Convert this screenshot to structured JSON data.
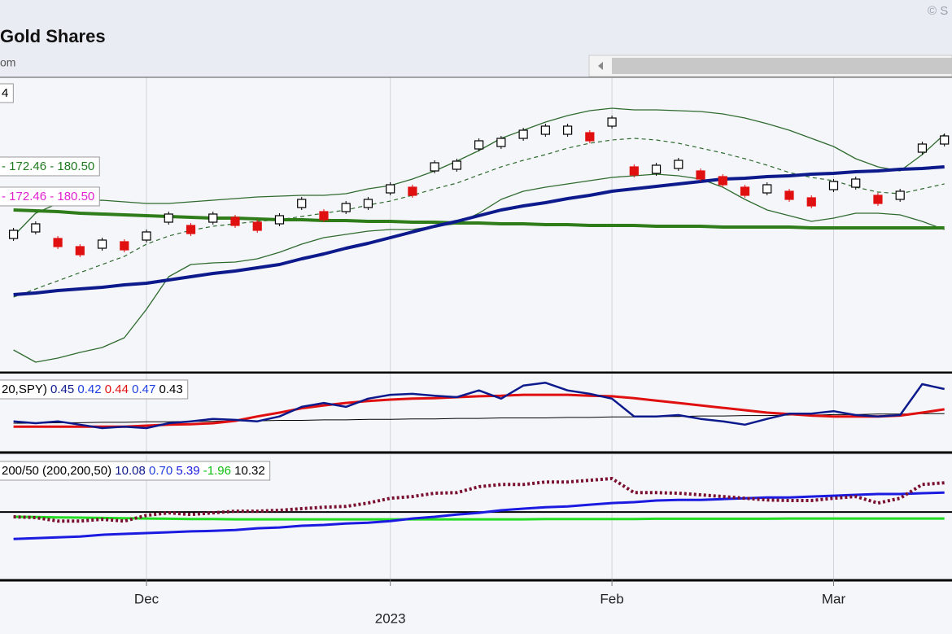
{
  "header": {
    "title": "Gold Shares",
    "subtitle": "om",
    "copyright": "© S"
  },
  "chart_data": [
    {
      "type": "line",
      "legend_texts": [
        [
          {
            "text": "4",
            "color": "#000000"
          }
        ],
        [
          {
            "text": "- 172.46 - 180.50",
            "color": "#1e7b1e"
          }
        ],
        [
          {
            "text": "- 172.46 - 180.50",
            "color": "#e020d0"
          }
        ]
      ],
      "ylim": [
        149.8,
        186
      ],
      "series": [
        {
          "color": "#2f6b2f",
          "width": 1.3,
          "style": "solid",
          "values": [
            166.5,
            169.3,
            170.5,
            170.8,
            170.9,
            170.7,
            170.5,
            170.5,
            170.7,
            170.9,
            171.1,
            171.3,
            171.4,
            171.5,
            171.5,
            171.7,
            172.3,
            172.7,
            173.5,
            174.5,
            175.7,
            177.0,
            178.5,
            179.5,
            180.5,
            181.3,
            181.9,
            182.2,
            182.0,
            182.0,
            181.9,
            181.8,
            181.5,
            181.0,
            180.3,
            179.5,
            178.5,
            177.5,
            176.0,
            175.0,
            174.5,
            176.5,
            179.0
          ]
        },
        {
          "color": "#2f6b2f",
          "width": 1.2,
          "style": "dashed",
          "values": [
            159.0,
            160.0,
            161.0,
            162.0,
            163.0,
            164.0,
            165.5,
            166.5,
            167.2,
            167.7,
            168.0,
            168.3,
            168.5,
            168.9,
            169.3,
            169.7,
            170.3,
            170.8,
            171.5,
            172.3,
            173.0,
            174.0,
            175.0,
            175.8,
            176.5,
            177.3,
            177.9,
            178.3,
            178.5,
            178.3,
            177.9,
            177.3,
            176.7,
            176.0,
            175.2,
            174.3,
            173.7,
            173.3,
            172.5,
            171.9,
            171.7,
            172.3,
            172.9
          ]
        },
        {
          "color": "#2f6b2f",
          "width": 1.3,
          "style": "solid",
          "values": [
            152.5,
            151.0,
            151.5,
            152.2,
            152.8,
            154.0,
            157.5,
            161.5,
            163.0,
            163.2,
            163.3,
            163.7,
            164.5,
            165.5,
            166.3,
            166.7,
            167.1,
            167.3,
            167.3,
            167.7,
            168.0,
            169.3,
            171.0,
            172.0,
            172.5,
            172.9,
            173.3,
            173.7,
            173.9,
            174.1,
            173.9,
            173.5,
            172.5,
            171.0,
            169.7,
            169.0,
            168.3,
            168.7,
            169.3,
            169.3,
            169.1,
            168.3,
            167.3
          ]
        },
        {
          "color": "#2e7d1a",
          "width": 4,
          "style": "solid",
          "values": [
            169.7,
            169.6,
            169.5,
            169.3,
            169.2,
            169.1,
            169.0,
            168.9,
            168.8,
            168.7,
            168.7,
            168.6,
            168.5,
            168.5,
            168.4,
            168.4,
            168.3,
            168.3,
            168.2,
            168.2,
            168.1,
            168.1,
            168.0,
            168.0,
            167.9,
            167.9,
            167.8,
            167.8,
            167.8,
            167.7,
            167.7,
            167.7,
            167.6,
            167.6,
            167.6,
            167.6,
            167.5,
            167.5,
            167.5,
            167.5,
            167.5,
            167.5,
            167.5
          ]
        },
        {
          "color": "#0d1a8c",
          "width": 4,
          "style": "solid",
          "values": [
            159.3,
            159.5,
            159.8,
            160.0,
            160.2,
            160.5,
            160.7,
            161.1,
            161.5,
            161.9,
            162.2,
            162.6,
            163.0,
            163.7,
            164.3,
            165.0,
            165.6,
            166.3,
            167.0,
            167.7,
            168.3,
            169.0,
            169.7,
            170.2,
            170.6,
            171.1,
            171.5,
            172.0,
            172.3,
            172.6,
            172.9,
            173.2,
            173.5,
            173.6,
            173.8,
            173.9,
            174.1,
            174.2,
            174.4,
            174.5,
            174.7,
            174.8,
            175.0
          ]
        },
        {
          "color": "#000000",
          "style": "candle",
          "down_color": "#e01010",
          "values": [
            166.7,
            167.5,
            165.7,
            164.7,
            165.5,
            165.3,
            166.5,
            168.7,
            167.3,
            168.7,
            168.3,
            167.7,
            168.5,
            170.5,
            169.0,
            170.0,
            170.5,
            172.3,
            172.0,
            175.0,
            175.2,
            177.7,
            178.0,
            179.0,
            179.5,
            179.5,
            178.7,
            180.5,
            174.5,
            174.7,
            175.3,
            174.0,
            173.3,
            172.0,
            172.3,
            171.5,
            170.7,
            172.7,
            173.0,
            171.0,
            171.5,
            177.3,
            178.3
          ]
        }
      ]
    },
    {
      "type": "line",
      "legend_texts": [
        [
          {
            "text": "20,SPY)",
            "color": "#000000"
          },
          {
            "text": "0.45",
            "color": "#0d1a8c"
          },
          {
            "text": "0.42",
            "color": "#2040e0"
          },
          {
            "text": "0.44",
            "color": "#e01010"
          },
          {
            "text": "0.47",
            "color": "#2040e0"
          },
          {
            "text": "0.43",
            "color": "#000000"
          }
        ]
      ],
      "ylim": [
        0.343,
        0.505
      ],
      "series": [
        {
          "color": "#000000",
          "width": 1,
          "style": "solid",
          "values": [
            0.402,
            0.402,
            0.403,
            0.403,
            0.404,
            0.404,
            0.405,
            0.405,
            0.406,
            0.406,
            0.407,
            0.407,
            0.408,
            0.408,
            0.409,
            0.409,
            0.41,
            0.41,
            0.411,
            0.411,
            0.412,
            0.412,
            0.413,
            0.413,
            0.413,
            0.414,
            0.414,
            0.415,
            0.415,
            0.416,
            0.416,
            0.417,
            0.417,
            0.418,
            0.418,
            0.419,
            0.419,
            0.42,
            0.42,
            0.421,
            0.421,
            0.422,
            0.422
          ]
        },
        {
          "color": "#e01010",
          "width": 3,
          "style": "solid",
          "values": [
            0.395,
            0.395,
            0.395,
            0.395,
            0.395,
            0.395,
            0.397,
            0.399,
            0.4,
            0.402,
            0.407,
            0.416,
            0.424,
            0.433,
            0.439,
            0.444,
            0.448,
            0.451,
            0.453,
            0.454,
            0.456,
            0.458,
            0.459,
            0.461,
            0.461,
            0.461,
            0.459,
            0.458,
            0.454,
            0.449,
            0.444,
            0.439,
            0.434,
            0.429,
            0.424,
            0.421,
            0.418,
            0.416,
            0.416,
            0.416,
            0.418,
            0.424,
            0.431
          ]
        },
        {
          "color": "#0d1a8c",
          "width": 2.5,
          "style": "solid",
          "values": [
            0.406,
            0.402,
            0.406,
            0.399,
            0.392,
            0.395,
            0.392,
            0.402,
            0.406,
            0.411,
            0.409,
            0.406,
            0.416,
            0.436,
            0.444,
            0.436,
            0.453,
            0.461,
            0.463,
            0.459,
            0.456,
            0.47,
            0.453,
            0.48,
            0.486,
            0.47,
            0.463,
            0.453,
            0.416,
            0.416,
            0.419,
            0.411,
            0.406,
            0.399,
            0.411,
            0.422,
            0.422,
            0.427,
            0.419,
            0.416,
            0.419,
            0.483,
            0.473
          ]
        }
      ]
    },
    {
      "type": "line",
      "legend_texts": [
        [
          {
            "text": "200/50 (200,200,50)",
            "color": "#000000"
          },
          {
            "text": "10.08",
            "color": "#0d1a8c"
          },
          {
            "text": "0.70",
            "color": "#2040e0"
          },
          {
            "text": "5.39",
            "color": "#1a1ae0"
          },
          {
            "text": "-1.96",
            "color": "#10c010"
          },
          {
            "text": "10.32",
            "color": "#000000"
          }
        ]
      ],
      "ylim": [
        -24,
        20.3
      ],
      "hline": 0,
      "categories": [
        null,
        null,
        null,
        null,
        null,
        null,
        "Dec",
        null,
        null,
        null,
        null,
        null,
        null,
        null,
        null,
        null,
        null,
        "2023",
        null,
        null,
        null,
        null,
        null,
        null,
        null,
        null,
        null,
        "Feb",
        null,
        null,
        null,
        null,
        null,
        null,
        null,
        null,
        null,
        "Mar",
        null,
        null,
        null,
        null,
        null
      ],
      "series": [
        {
          "color": "#22dd22",
          "width": 3,
          "style": "solid",
          "values": [
            -1.7,
            -1.8,
            -1.9,
            -2.0,
            -2.1,
            -2.2,
            -2.3,
            -2.4,
            -2.5,
            -2.5,
            -2.6,
            -2.6,
            -2.6,
            -2.6,
            -2.6,
            -2.6,
            -2.6,
            -2.6,
            -2.6,
            -2.6,
            -2.6,
            -2.6,
            -2.6,
            -2.6,
            -2.5,
            -2.5,
            -2.5,
            -2.5,
            -2.5,
            -2.4,
            -2.4,
            -2.4,
            -2.4,
            -2.4,
            -2.4,
            -2.3,
            -2.3,
            -2.3,
            -2.3,
            -2.3,
            -2.3,
            -2.3,
            -2.3
          ]
        },
        {
          "color": "#1a1ae0",
          "width": 3,
          "style": "solid",
          "values": [
            -9.6,
            -9.3,
            -9.0,
            -8.7,
            -8.1,
            -7.8,
            -7.5,
            -7.2,
            -6.9,
            -6.7,
            -6.4,
            -5.8,
            -5.5,
            -4.9,
            -4.6,
            -4.1,
            -3.8,
            -3.2,
            -2.3,
            -1.7,
            -0.9,
            -0.3,
            0.6,
            1.2,
            1.7,
            2.0,
            2.6,
            3.2,
            3.5,
            4.1,
            4.3,
            4.3,
            4.6,
            4.9,
            5.2,
            5.2,
            5.5,
            5.8,
            6.1,
            6.4,
            6.4,
            6.7,
            6.9
          ]
        },
        {
          "color": "#7a1030",
          "width": 4,
          "style": "dotted",
          "values": [
            -1.7,
            -2.0,
            -3.2,
            -3.2,
            -2.6,
            -3.2,
            -1.2,
            -0.3,
            -0.9,
            -0.3,
            0.3,
            0.3,
            0.6,
            1.2,
            1.7,
            2.0,
            3.2,
            4.9,
            5.5,
            6.7,
            6.9,
            9.0,
            9.8,
            9.8,
            10.7,
            10.7,
            11.3,
            11.9,
            6.9,
            6.9,
            6.7,
            6.1,
            5.5,
            4.9,
            4.3,
            4.1,
            4.1,
            4.9,
            5.5,
            3.2,
            4.9,
            9.8,
            10.4
          ]
        }
      ]
    }
  ]
}
